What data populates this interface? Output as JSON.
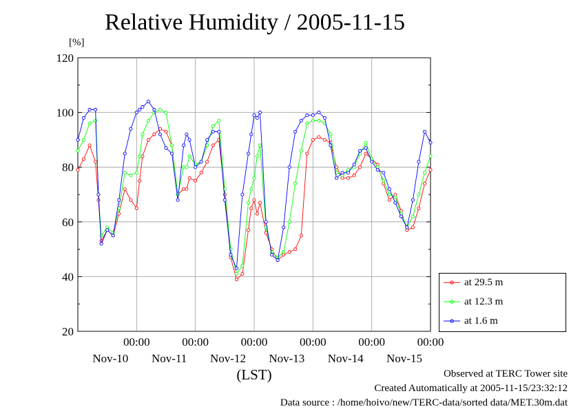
{
  "chart_data": {
    "type": "line",
    "title": "Relative Humidity / 2005-11-15",
    "ylabel": "[%]",
    "xlabel": "(LST)",
    "ylim": [
      20,
      120
    ],
    "yticks": [
      20,
      40,
      60,
      80,
      100,
      120
    ],
    "xlim_days": [
      0,
      6
    ],
    "x_ticks": [
      {
        "time": "00:00",
        "date": "Nov-10",
        "day": 1
      },
      {
        "time": "00:00",
        "date": "Nov-11",
        "day": 2
      },
      {
        "time": "00:00",
        "date": "Nov-12",
        "day": 3
      },
      {
        "time": "00:00",
        "date": "Nov-13",
        "day": 4
      },
      {
        "time": "00:00",
        "date": "Nov-14",
        "day": 5
      },
      {
        "time": "00:00",
        "date": "Nov-15",
        "day": 6
      }
    ],
    "grid": true,
    "legend_position": "bottom-right outside",
    "series": [
      {
        "name": "at 29.5 m",
        "color": "#ff0000",
        "x": [
          0,
          0.1,
          0.2,
          0.3,
          0.35,
          0.4,
          0.5,
          0.6,
          0.7,
          0.8,
          0.9,
          1.0,
          1.05,
          1.1,
          1.2,
          1.3,
          1.4,
          1.5,
          1.6,
          1.7,
          1.8,
          1.85,
          1.9,
          2.0,
          2.1,
          2.2,
          2.3,
          2.4,
          2.5,
          2.6,
          2.7,
          2.8,
          2.9,
          2.95,
          3.0,
          3.05,
          3.1,
          3.2,
          3.3,
          3.4,
          3.5,
          3.6,
          3.7,
          3.8,
          3.9,
          4.0,
          4.1,
          4.2,
          4.3,
          4.4,
          4.5,
          4.6,
          4.7,
          4.8,
          4.9,
          5.0,
          5.1,
          5.2,
          5.3,
          5.4,
          5.5,
          5.6,
          5.7,
          5.8,
          5.9,
          6.0
        ],
        "y": [
          79,
          83,
          88,
          82,
          68,
          53,
          57,
          55,
          63,
          72,
          68,
          65,
          75,
          84,
          90,
          92,
          94,
          93,
          88,
          70,
          72,
          72,
          76,
          75,
          78,
          82,
          88,
          90,
          70,
          47,
          39,
          41,
          57,
          65,
          68,
          63,
          67,
          56,
          50,
          46,
          48,
          49,
          50,
          55,
          85,
          90,
          91,
          90,
          89,
          80,
          76,
          76,
          77,
          80,
          85,
          83,
          81,
          74,
          68,
          70,
          64,
          57,
          58,
          65,
          74,
          79
        ]
      },
      {
        "name": "at 12.3 m",
        "color": "#00ff00",
        "x": [
          0,
          0.1,
          0.2,
          0.3,
          0.35,
          0.4,
          0.5,
          0.6,
          0.7,
          0.8,
          0.9,
          1.0,
          1.05,
          1.1,
          1.2,
          1.3,
          1.4,
          1.5,
          1.6,
          1.7,
          1.8,
          1.85,
          1.9,
          2.0,
          2.1,
          2.2,
          2.3,
          2.4,
          2.5,
          2.6,
          2.7,
          2.8,
          2.9,
          2.95,
          3.0,
          3.05,
          3.1,
          3.2,
          3.3,
          3.4,
          3.5,
          3.6,
          3.7,
          3.8,
          3.9,
          4.0,
          4.1,
          4.2,
          4.3,
          4.4,
          4.5,
          4.6,
          4.7,
          4.8,
          4.9,
          5.0,
          5.1,
          5.2,
          5.3,
          5.4,
          5.5,
          5.6,
          5.7,
          5.8,
          5.9,
          6.0
        ],
        "y": [
          86,
          90,
          96,
          97,
          70,
          55,
          58,
          56,
          65,
          78,
          77,
          78,
          84,
          92,
          97,
          100,
          101,
          100,
          88,
          70,
          80,
          80,
          84,
          81,
          82,
          88,
          95,
          97,
          72,
          50,
          41,
          44,
          67,
          72,
          76,
          84,
          88,
          58,
          49,
          47,
          49,
          60,
          74,
          86,
          96,
          97,
          97,
          96,
          92,
          78,
          77,
          79,
          80,
          85,
          89,
          83,
          80,
          75,
          70,
          69,
          63,
          58,
          62,
          70,
          78,
          84
        ]
      },
      {
        "name": "at 1.6 m",
        "color": "#0000ff",
        "x": [
          0,
          0.1,
          0.2,
          0.3,
          0.35,
          0.4,
          0.5,
          0.6,
          0.7,
          0.8,
          0.9,
          1.0,
          1.05,
          1.1,
          1.2,
          1.3,
          1.4,
          1.5,
          1.6,
          1.7,
          1.8,
          1.85,
          1.9,
          2.0,
          2.1,
          2.2,
          2.3,
          2.4,
          2.5,
          2.6,
          2.7,
          2.8,
          2.9,
          2.95,
          3.0,
          3.05,
          3.1,
          3.2,
          3.3,
          3.4,
          3.5,
          3.6,
          3.7,
          3.8,
          3.9,
          4.0,
          4.1,
          4.2,
          4.3,
          4.4,
          4.5,
          4.6,
          4.7,
          4.8,
          4.9,
          5.0,
          5.1,
          5.2,
          5.3,
          5.4,
          5.5,
          5.6,
          5.7,
          5.8,
          5.9,
          6.0
        ],
        "y": [
          90,
          98,
          101,
          101,
          70,
          52,
          57,
          55,
          68,
          85,
          94,
          100,
          101,
          102,
          104,
          101,
          92,
          87,
          85,
          68,
          88,
          92,
          90,
          80,
          82,
          90,
          93,
          93,
          68,
          48,
          43,
          70,
          85,
          92,
          99,
          98,
          100,
          60,
          48,
          46,
          58,
          80,
          93,
          97,
          99,
          99,
          100,
          98,
          88,
          76,
          78,
          78,
          81,
          86,
          87,
          82,
          79,
          78,
          72,
          67,
          62,
          58,
          68,
          82,
          93,
          89
        ]
      }
    ],
    "footer": {
      "line1": "Observed at TERC Tower site",
      "line2": "Created Automatically at 2005-11-15/23:32:12",
      "line3": "Data source : /home/hoivo/new/TERC-data/sorted  data/MET.30m.dat"
    }
  }
}
